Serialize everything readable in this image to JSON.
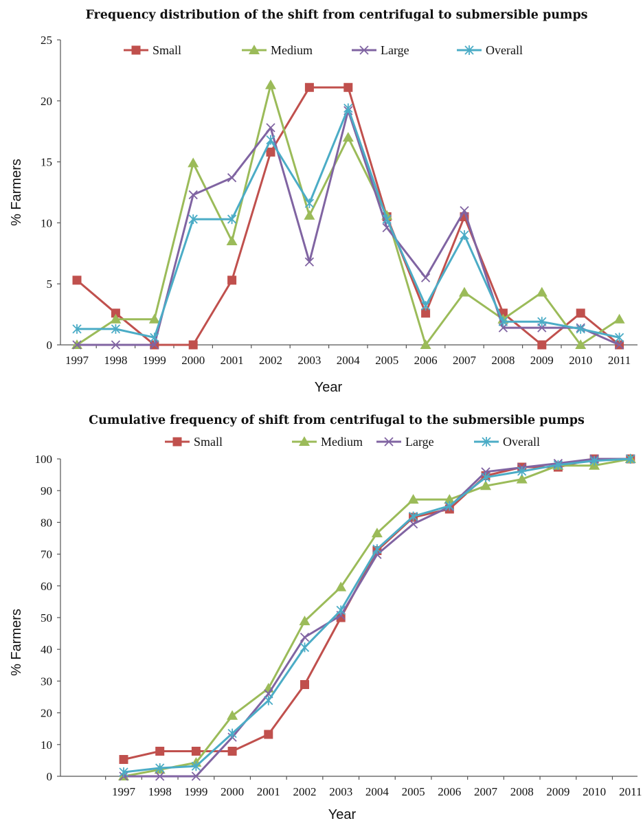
{
  "chart_data": [
    {
      "type": "line",
      "title": "Frequency distribution of the shift from centrifugal to submersible pumps",
      "xlabel": "Year",
      "ylabel": "% Farmers",
      "categories": [
        "1997",
        "1998",
        "1999",
        "2000",
        "2001",
        "2002",
        "2003",
        "2004",
        "2005",
        "2006",
        "2007",
        "2008",
        "2009",
        "2010",
        "2011"
      ],
      "ylim": [
        0,
        25
      ],
      "yticks": [
        0,
        5,
        10,
        15,
        20,
        25
      ],
      "legend_position": "top",
      "series": [
        {
          "name": "Small",
          "color": "#c0504d",
          "marker": "square",
          "values": [
            5.3,
            2.6,
            0,
            0,
            5.3,
            15.8,
            21.1,
            21.1,
            10.5,
            2.6,
            10.5,
            2.6,
            0,
            2.6,
            0
          ]
        },
        {
          "name": "Medium",
          "color": "#9bbb59",
          "marker": "triangle",
          "values": [
            0,
            2.1,
            2.1,
            14.9,
            8.5,
            21.3,
            10.6,
            17.0,
            10.6,
            0,
            4.3,
            2.1,
            4.3,
            0,
            2.1
          ]
        },
        {
          "name": "Large",
          "color": "#8064a2",
          "marker": "x",
          "values": [
            0,
            0,
            0,
            12.3,
            13.7,
            17.8,
            6.8,
            19.2,
            9.6,
            5.5,
            11.0,
            1.4,
            1.4,
            1.4,
            0
          ]
        },
        {
          "name": "Overall",
          "color": "#4bacc6",
          "marker": "star",
          "values": [
            1.3,
            1.3,
            0.6,
            10.3,
            10.3,
            16.8,
            11.6,
            19.4,
            10.3,
            3.2,
            9.0,
            1.9,
            1.9,
            1.3,
            0.6
          ]
        }
      ]
    },
    {
      "type": "line",
      "title": "Cumulative frequency of shift from centrifugal to the submersible pumps",
      "xlabel": "Year",
      "ylabel": "% Farmers",
      "categories": [
        "1997",
        "1998",
        "1999",
        "2000",
        "2001",
        "2002",
        "2003",
        "2004",
        "2005",
        "2006",
        "2007",
        "2008",
        "2009",
        "2010",
        "2011"
      ],
      "ylim": [
        0,
        100
      ],
      "yticks": [
        0,
        10,
        20,
        30,
        40,
        50,
        60,
        70,
        80,
        90,
        100
      ],
      "legend_position": "top",
      "series": [
        {
          "name": "Small",
          "color": "#c0504d",
          "marker": "square",
          "values": [
            5.3,
            7.9,
            7.9,
            7.9,
            13.2,
            28.9,
            50.0,
            71.1,
            81.6,
            84.2,
            94.7,
            97.4,
            97.4,
            100,
            100
          ]
        },
        {
          "name": "Medium",
          "color": "#9bbb59",
          "marker": "triangle",
          "values": [
            0,
            2.1,
            4.3,
            19.1,
            27.7,
            48.9,
            59.6,
            76.6,
            87.2,
            87.2,
            91.5,
            93.6,
            97.9,
            97.9,
            100
          ]
        },
        {
          "name": "Large",
          "color": "#8064a2",
          "marker": "x",
          "values": [
            0,
            0,
            0,
            12.3,
            26.0,
            43.8,
            50.7,
            69.9,
            79.5,
            84.9,
            95.9,
            97.3,
            98.6,
            100,
            100
          ]
        },
        {
          "name": "Overall",
          "color": "#4bacc6",
          "marker": "star",
          "values": [
            1.3,
            2.6,
            3.2,
            13.5,
            23.9,
            40.6,
            52.3,
            71.6,
            81.9,
            85.2,
            94.2,
            96.1,
            98.1,
            99.4,
            100
          ]
        }
      ]
    }
  ]
}
